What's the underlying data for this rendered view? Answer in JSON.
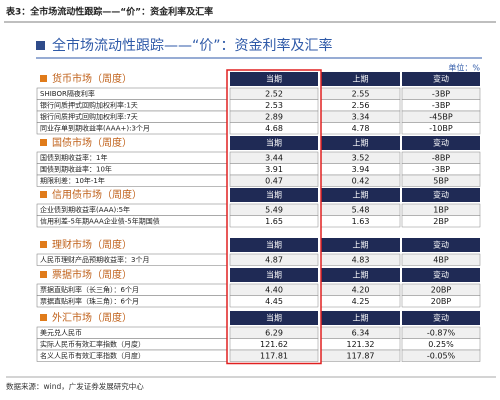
{
  "caption": "表3：全市场流动性跟踪——“价”：资金利率及汇率",
  "title": "全市场流动性跟踪——“价”：资金利率及汇率",
  "unit": "单位：%",
  "columns": [
    "当期",
    "上期",
    "变动"
  ],
  "sections": [
    {
      "title": "货币市场（周度）",
      "rows": [
        {
          "label": "SHIBOR隔夜利率",
          "current": "2.52",
          "previous": "2.55",
          "change": "-3BP"
        },
        {
          "label": "银行间质押式回购加权利率:1天",
          "current": "2.53",
          "previous": "2.56",
          "change": "-3BP"
        },
        {
          "label": "银行间质押式回购加权利率:7天",
          "current": "2.89",
          "previous": "3.34",
          "change": "-45BP"
        },
        {
          "label": "同业存单到期收益率(AAA+):3个月",
          "current": "4.68",
          "previous": "4.78",
          "change": "-10BP"
        }
      ]
    },
    {
      "title": "国债市场（周度）",
      "rows": [
        {
          "label": "国债到期收益率：1年",
          "current": "3.44",
          "previous": "3.52",
          "change": "-8BP"
        },
        {
          "label": "国债到期收益率：10年",
          "current": "3.91",
          "previous": "3.94",
          "change": "-3BP"
        },
        {
          "label": "期限利差：10年-1年",
          "current": "0.47",
          "previous": "0.42",
          "change": "5BP"
        }
      ]
    },
    {
      "title": "信用债市场（周度）",
      "rows": [
        {
          "label": "企业债到期收益率(AAA):5年",
          "current": "5.49",
          "previous": "5.48",
          "change": "1BP"
        },
        {
          "label": "信用利差-5年期AAA企业债-5年期国债",
          "current": "1.65",
          "previous": "1.63",
          "change": "2BP"
        }
      ]
    },
    {
      "title": "理财市场（周度）",
      "rows": [
        {
          "label": "人民币理财产品预期收益率：3个月",
          "current": "4.87",
          "previous": "4.83",
          "change": "4BP"
        }
      ]
    },
    {
      "title": "票据市场（周度）",
      "rows": [
        {
          "label": "票据直贴利率（长三角）：6个月",
          "current": "4.40",
          "previous": "4.20",
          "change": "20BP"
        },
        {
          "label": "票据直贴利率（珠三角）：6个月",
          "current": "4.45",
          "previous": "4.25",
          "change": "20BP"
        }
      ]
    },
    {
      "title": "外汇市场（周度）",
      "rows": [
        {
          "label": "美元兑人民币",
          "current": "6.29",
          "previous": "6.34",
          "change": "-0.87%"
        },
        {
          "label": "实际人民币有效汇率指数（月度）",
          "current": "121.62",
          "previous": "121.32",
          "change": "0.25%"
        },
        {
          "label": "名义人民币有效汇率指数（月度）",
          "current": "117.81",
          "previous": "117.87",
          "change": "-0.05%"
        }
      ]
    }
  ],
  "source": "数据来源：wind，广发证券发展研究中心"
}
